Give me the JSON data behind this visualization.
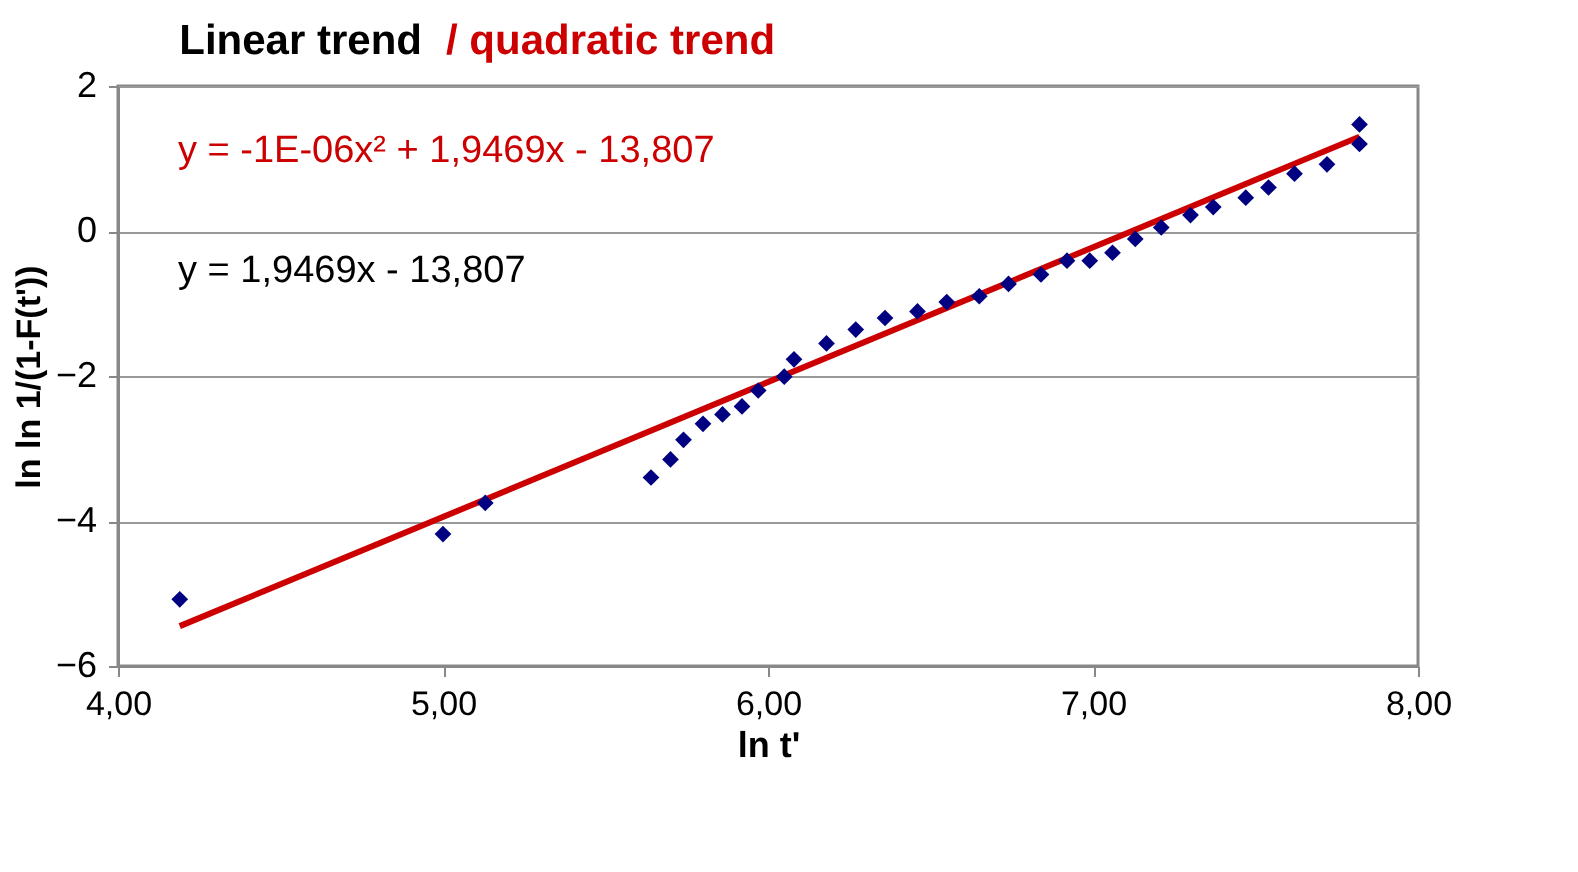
{
  "chart_data": {
    "type": "scatter",
    "title": "Linear trend",
    "subtitle": "/ quadratic trend",
    "xlabel": "ln t'",
    "ylabel": "ln ln 1/(1-F(t'))",
    "series": [
      {
        "color": "#000080",
        "marker": "diamond",
        "x": [
          4.19,
          5.0,
          5.13,
          5.64,
          5.7,
          5.74,
          5.8,
          5.86,
          5.92,
          5.97,
          6.05,
          6.08,
          6.18,
          6.27,
          6.36,
          6.46,
          6.55,
          6.65,
          6.74,
          6.84,
          6.92,
          6.99,
          7.06,
          7.13,
          7.21,
          7.3,
          7.37,
          7.47,
          7.54,
          7.62,
          7.72,
          7.82,
          7.82
        ],
        "values": [
          -5.08,
          -4.18,
          -3.75,
          -3.4,
          -3.15,
          -2.88,
          -2.66,
          -2.53,
          -2.42,
          -2.2,
          -2.01,
          -1.77,
          -1.55,
          -1.36,
          -1.2,
          -1.11,
          -0.98,
          -0.9,
          -0.73,
          -0.6,
          -0.41,
          -0.41,
          -0.3,
          -0.11,
          0.05,
          0.22,
          0.33,
          0.46,
          0.6,
          0.79,
          0.92,
          1.2,
          1.47
        ]
      },
      {
        "type": "line",
        "color": "#cc0000",
        "x": [
          4.19,
          7.82
        ],
        "values": [
          -5.45,
          1.3
        ]
      }
    ],
    "annotations": [
      "y = -1E-06x² + 1,9469x - 13,807",
      "y = 1,9469x - 13,807"
    ],
    "xlim": [
      4,
      8
    ],
    "xticks": [
      {
        "value": 4,
        "label": "4,00"
      },
      {
        "value": 5,
        "label": "5,00"
      },
      {
        "value": 6,
        "label": "6,00"
      },
      {
        "value": 7,
        "label": "7,00"
      },
      {
        "value": 8,
        "label": "8,00"
      }
    ],
    "ylim": [
      -6,
      2
    ],
    "yticks": [
      2,
      0,
      -2,
      -4,
      -6
    ],
    "grid": "y"
  }
}
